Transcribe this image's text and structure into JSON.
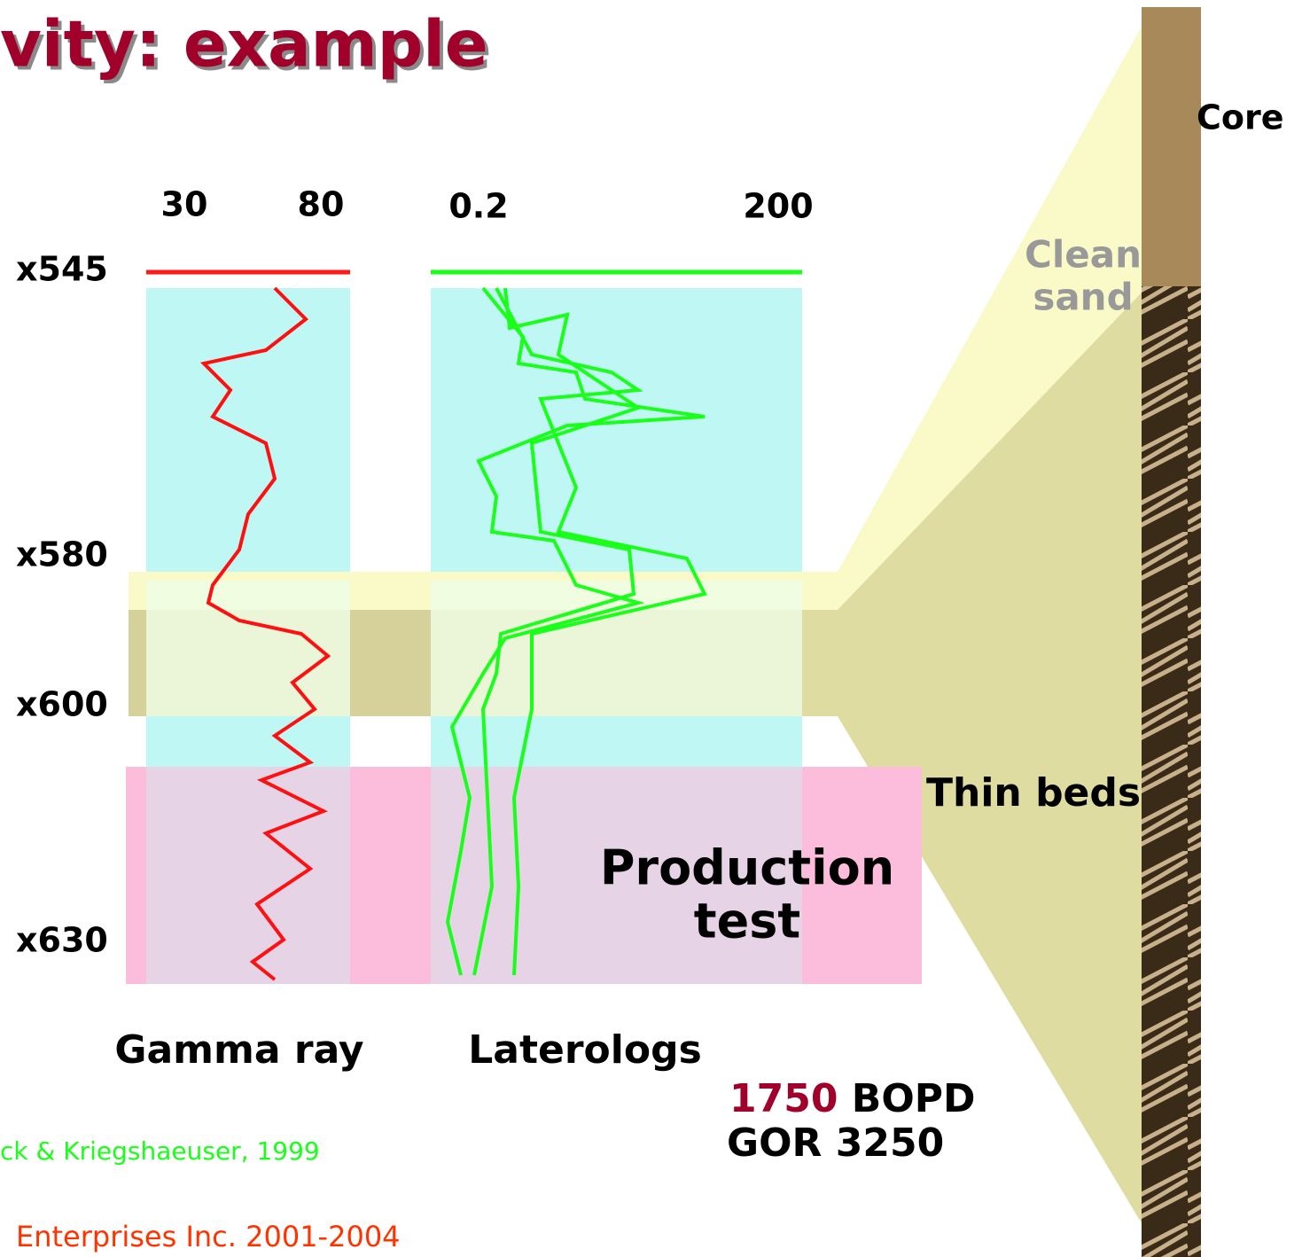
{
  "title": "vity: example",
  "gamma_scale": {
    "min": "30",
    "max": "80"
  },
  "laterolog_scale": {
    "min": "0.2",
    "max": "200"
  },
  "depths": [
    "x545",
    "x580",
    "x600",
    "x630"
  ],
  "core_label": "Core",
  "clean_sand": [
    "Clean",
    "sand"
  ],
  "thin_beds": "Thin beds",
  "production_test": [
    "Production",
    "test"
  ],
  "track_labels": [
    "Gamma ray",
    "Laterologs"
  ],
  "result": {
    "rate": "1750",
    "rate_unit": "BOPD",
    "gor": "GOR 3250"
  },
  "citation": "ck & Kriegshaeuser, 1999",
  "copyright": "Enterprises Inc. 2001-2004"
}
